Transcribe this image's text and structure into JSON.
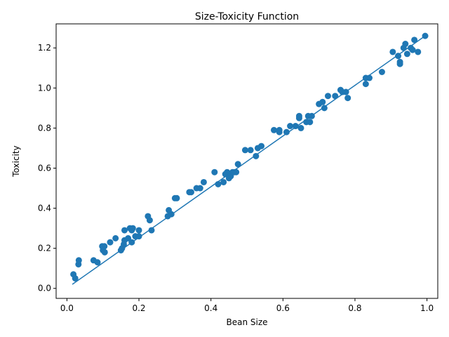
{
  "chart_data": {
    "type": "scatter",
    "title": "Size-Toxicity Function",
    "xlabel": "Bean Size",
    "ylabel": "Toxicity",
    "xlim": [
      -0.03,
      1.03
    ],
    "ylim": [
      -0.05,
      1.32
    ],
    "xticks": [
      0.0,
      0.2,
      0.4,
      0.6,
      0.8,
      1.0
    ],
    "yticks": [
      0.0,
      0.2,
      0.4,
      0.6,
      0.8,
      1.0,
      1.2
    ],
    "xtick_labels": [
      "0.0",
      "0.2",
      "0.4",
      "0.6",
      "0.8",
      "1.0"
    ],
    "ytick_labels": [
      "0.0",
      "0.2",
      "0.4",
      "0.6",
      "0.8",
      "1.0",
      "1.2"
    ],
    "grid": false,
    "color": "#1f77b4",
    "series": [
      {
        "name": "observations",
        "type": "scatter",
        "points": [
          [
            0.018,
            0.07
          ],
          [
            0.023,
            0.05
          ],
          [
            0.032,
            0.12
          ],
          [
            0.033,
            0.14
          ],
          [
            0.074,
            0.14
          ],
          [
            0.085,
            0.13
          ],
          [
            0.098,
            0.21
          ],
          [
            0.1,
            0.19
          ],
          [
            0.104,
            0.21
          ],
          [
            0.105,
            0.18
          ],
          [
            0.12,
            0.23
          ],
          [
            0.135,
            0.25
          ],
          [
            0.15,
            0.19
          ],
          [
            0.153,
            0.2
          ],
          [
            0.158,
            0.22
          ],
          [
            0.16,
            0.24
          ],
          [
            0.16,
            0.29
          ],
          [
            0.17,
            0.25
          ],
          [
            0.175,
            0.3
          ],
          [
            0.18,
            0.29
          ],
          [
            0.183,
            0.3
          ],
          [
            0.18,
            0.23
          ],
          [
            0.19,
            0.26
          ],
          [
            0.2,
            0.26
          ],
          [
            0.2,
            0.29
          ],
          [
            0.225,
            0.36
          ],
          [
            0.23,
            0.34
          ],
          [
            0.235,
            0.29
          ],
          [
            0.28,
            0.36
          ],
          [
            0.283,
            0.39
          ],
          [
            0.29,
            0.37
          ],
          [
            0.3,
            0.45
          ],
          [
            0.305,
            0.45
          ],
          [
            0.34,
            0.48
          ],
          [
            0.345,
            0.48
          ],
          [
            0.36,
            0.5
          ],
          [
            0.37,
            0.5
          ],
          [
            0.38,
            0.53
          ],
          [
            0.41,
            0.58
          ],
          [
            0.42,
            0.52
          ],
          [
            0.435,
            0.53
          ],
          [
            0.44,
            0.57
          ],
          [
            0.445,
            0.58
          ],
          [
            0.45,
            0.55
          ],
          [
            0.455,
            0.56
          ],
          [
            0.46,
            0.58
          ],
          [
            0.465,
            0.58
          ],
          [
            0.47,
            0.58
          ],
          [
            0.475,
            0.62
          ],
          [
            0.495,
            0.69
          ],
          [
            0.51,
            0.69
          ],
          [
            0.525,
            0.66
          ],
          [
            0.53,
            0.7
          ],
          [
            0.54,
            0.71
          ],
          [
            0.575,
            0.79
          ],
          [
            0.59,
            0.79
          ],
          [
            0.59,
            0.78
          ],
          [
            0.61,
            0.78
          ],
          [
            0.62,
            0.81
          ],
          [
            0.635,
            0.81
          ],
          [
            0.645,
            0.85
          ],
          [
            0.645,
            0.86
          ],
          [
            0.65,
            0.8
          ],
          [
            0.665,
            0.83
          ],
          [
            0.67,
            0.86
          ],
          [
            0.675,
            0.83
          ],
          [
            0.68,
            0.86
          ],
          [
            0.7,
            0.92
          ],
          [
            0.71,
            0.93
          ],
          [
            0.715,
            0.9
          ],
          [
            0.725,
            0.96
          ],
          [
            0.745,
            0.96
          ],
          [
            0.76,
            0.99
          ],
          [
            0.765,
            0.98
          ],
          [
            0.775,
            0.98
          ],
          [
            0.78,
            0.95
          ],
          [
            0.83,
            1.05
          ],
          [
            0.83,
            1.02
          ],
          [
            0.84,
            1.05
          ],
          [
            0.875,
            1.08
          ],
          [
            0.905,
            1.18
          ],
          [
            0.92,
            1.16
          ],
          [
            0.925,
            1.13
          ],
          [
            0.925,
            1.12
          ],
          [
            0.935,
            1.2
          ],
          [
            0.94,
            1.22
          ],
          [
            0.945,
            1.17
          ],
          [
            0.955,
            1.2
          ],
          [
            0.96,
            1.19
          ],
          [
            0.965,
            1.24
          ],
          [
            0.975,
            1.18
          ],
          [
            0.995,
            1.26
          ]
        ]
      },
      {
        "name": "fit",
        "type": "line",
        "x": [
          0.015,
          0.995
        ],
        "y": [
          0.02,
          1.26
        ]
      }
    ]
  }
}
